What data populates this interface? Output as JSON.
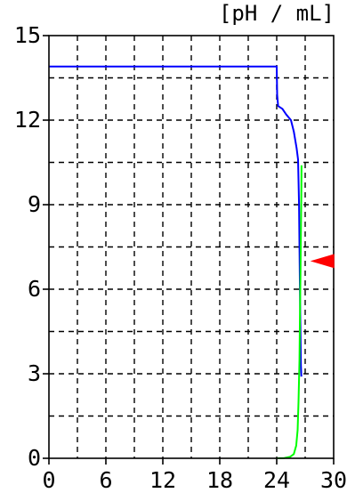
{
  "chart_data": {
    "type": "line",
    "unit_label": "[pH / mL]",
    "xlim": [
      0,
      30
    ],
    "ylim": [
      0,
      15
    ],
    "x_ticks": [
      0,
      6,
      12,
      18,
      24,
      30
    ],
    "y_ticks": [
      0,
      3,
      6,
      9,
      12,
      15
    ],
    "grid": true,
    "grid_style": "dashed",
    "x_grid_step": 3,
    "y_grid_step": 1.5,
    "series": [
      {
        "color": "#0000ff",
        "points": [
          [
            0,
            13.9
          ],
          [
            24,
            13.9
          ],
          [
            24.05,
            12.9
          ],
          [
            24.15,
            12.5
          ],
          [
            24.6,
            12.4
          ],
          [
            25.0,
            12.2
          ],
          [
            25.5,
            12.0
          ],
          [
            25.8,
            11.6
          ],
          [
            26.1,
            11.0
          ],
          [
            26.25,
            10.6
          ],
          [
            26.35,
            9.0
          ],
          [
            26.4,
            7.5
          ],
          [
            26.45,
            6.0
          ],
          [
            26.5,
            4.5
          ],
          [
            26.55,
            3.3
          ],
          [
            26.6,
            2.9
          ]
        ]
      },
      {
        "color": "#00ff00",
        "points": [
          [
            24,
            0.0
          ],
          [
            24.8,
            0.01
          ],
          [
            25.4,
            0.05
          ],
          [
            25.8,
            0.15
          ],
          [
            26.05,
            0.45
          ],
          [
            26.2,
            1.0
          ],
          [
            26.3,
            2.0
          ],
          [
            26.4,
            3.5
          ],
          [
            26.45,
            5.0
          ],
          [
            26.5,
            6.5
          ],
          [
            26.55,
            8.0
          ],
          [
            26.6,
            9.5
          ],
          [
            26.62,
            10.4
          ]
        ]
      }
    ],
    "marker": {
      "shape": "triangle-left",
      "color": "#ff0000",
      "y": 7.0
    }
  }
}
